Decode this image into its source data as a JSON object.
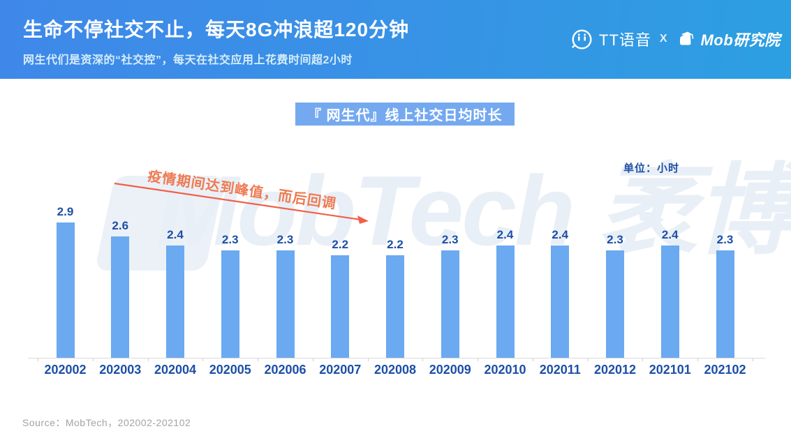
{
  "header": {
    "title": "生命不停社交不止，每天8G冲浪超120分钟",
    "subtitle": "网生代们是资深的“社交控”，每天在社交应用上花费时间超2小时",
    "partners": {
      "tt_label": "TT语音",
      "separator": "X",
      "mob_label": "Mob研究院"
    }
  },
  "chart": {
    "badge_title": "『 网生代』线上社交日均时长",
    "unit_label": "单位：小时",
    "annotation": "疫情期间达到峰值，而后回调",
    "watermark": "MobTech 袤博"
  },
  "chart_data": {
    "type": "bar",
    "title": "『 网生代』线上社交日均时长",
    "categories": [
      "202002",
      "202003",
      "202004",
      "202005",
      "202006",
      "202007",
      "202008",
      "202009",
      "202010",
      "202011",
      "202012",
      "202101",
      "202102"
    ],
    "values": [
      2.9,
      2.6,
      2.4,
      2.3,
      2.3,
      2.2,
      2.2,
      2.3,
      2.4,
      2.4,
      2.3,
      2.4,
      2.3
    ],
    "xlabel": "",
    "ylabel": "小时",
    "ylim": [
      0,
      3
    ],
    "unit": "小时",
    "grid": false,
    "legend": false,
    "bar_color": "#6BA9F1",
    "value_label_color": "#1C4FA6",
    "annotation": "疫情期间达到峰值，而后回调"
  },
  "footer": {
    "source": "Source：MobTech，202002-202102"
  },
  "colors": {
    "header_gradient_start": "#3F88E9",
    "header_gradient_end": "#2C9FE2",
    "badge_bg": "#74A9F0",
    "bar": "#6BA9F1",
    "label_text": "#1C4FA6",
    "annotation_text": "#EF7A52",
    "arrow": "#F0604A",
    "axis": "#DADADA",
    "source_text": "#A3A3A3"
  }
}
